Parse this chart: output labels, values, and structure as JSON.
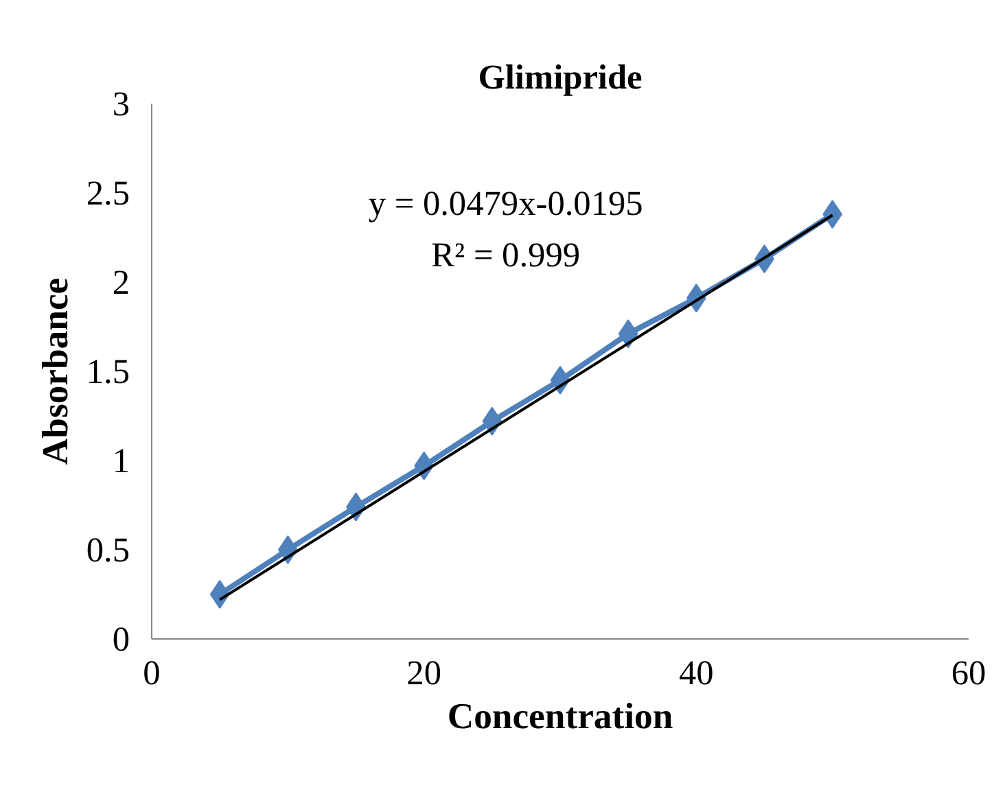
{
  "chart_data": {
    "type": "line",
    "title": "Glimipride",
    "xlabel": "Concentration",
    "ylabel": "Absorbance",
    "x": [
      5,
      10,
      15,
      20,
      25,
      30,
      35,
      40,
      45,
      50
    ],
    "series": [
      {
        "color": "#4f81bd",
        "marker": "diamond",
        "values": [
          0.25,
          0.5,
          0.74,
          0.97,
          1.22,
          1.45,
          1.71,
          1.91,
          2.13,
          2.38
        ]
      },
      {
        "color": "#000000",
        "marker": "none",
        "x": [
          5,
          50
        ],
        "values": [
          0.22,
          2.375
        ]
      }
    ],
    "xlim": [
      0,
      60
    ],
    "xticks": [
      0,
      20,
      40,
      60
    ],
    "ylim": [
      0,
      3
    ],
    "yticks": [
      0,
      0.5,
      1,
      1.5,
      2,
      2.5,
      3
    ],
    "grid": false,
    "annotations": [
      "y = 0.0479x-0.0195",
      "R² = 0.999"
    ]
  }
}
